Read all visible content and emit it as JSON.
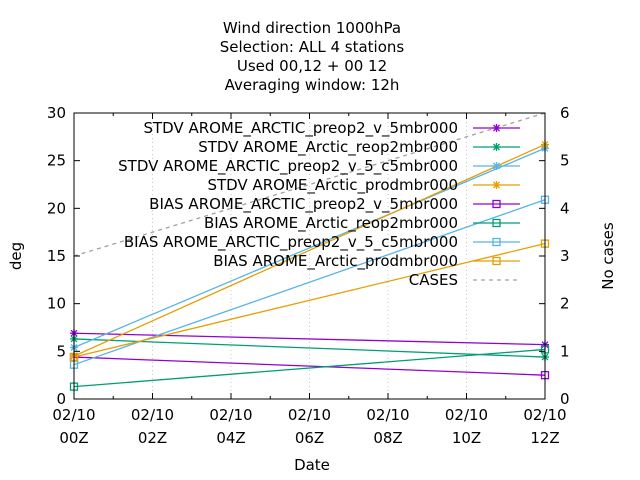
{
  "chart_data": {
    "type": "line",
    "title_lines": [
      "Wind direction 1000hPa",
      "Selection: ALL      4 stations",
      "Used  00,12  + 00  12",
      "Averaging window: 12h"
    ],
    "xlabel": "Date",
    "ylabel": "deg",
    "y2label": "No cases",
    "x": [
      0,
      12
    ],
    "xticks": [
      {
        "v": 0,
        "l1": "02/10",
        "l2": "00Z"
      },
      {
        "v": 2,
        "l1": "02/10",
        "l2": "02Z"
      },
      {
        "v": 4,
        "l1": "02/10",
        "l2": "04Z"
      },
      {
        "v": 6,
        "l1": "02/10",
        "l2": "06Z"
      },
      {
        "v": 8,
        "l1": "02/10",
        "l2": "08Z"
      },
      {
        "v": 10,
        "l1": "02/10",
        "l2": "10Z"
      },
      {
        "v": 12,
        "l1": "02/10",
        "l2": "12Z"
      }
    ],
    "xlim": [
      0,
      12
    ],
    "ylim": [
      0,
      30
    ],
    "y2lim": [
      0,
      6
    ],
    "yticks": [
      "0",
      "5",
      "10",
      "15",
      "20",
      "25",
      "30"
    ],
    "y2ticks": [
      "0",
      "1",
      "2",
      "3",
      "4",
      "5",
      "6"
    ],
    "legend_position": "top-right",
    "series": [
      {
        "name": "STDV AROME_ARCTIC_preop2_v_5mbr000",
        "kind": "stdv",
        "color": "#9400d3",
        "marker": "star",
        "axis": "y",
        "values": [
          6.9,
          5.7
        ]
      },
      {
        "name": "STDV AROME_Arctic_reop2mbr000",
        "kind": "stdv",
        "color": "#009e73",
        "marker": "star",
        "axis": "y",
        "values": [
          6.3,
          4.4
        ]
      },
      {
        "name": "STDV AROME_ARCTIC_preop2_v_5_c5mbr000",
        "kind": "stdv",
        "color": "#56b4e9",
        "marker": "star",
        "axis": "y",
        "values": [
          5.4,
          26.3
        ]
      },
      {
        "name": "STDV AROME_Arctic_prodmbr000",
        "kind": "stdv",
        "color": "#e69f00",
        "marker": "star",
        "axis": "y",
        "values": [
          4.5,
          26.7
        ]
      },
      {
        "name": "BIAS AROME_ARCTIC_preop2_v_5mbr000",
        "kind": "bias",
        "color": "#9400d3",
        "marker": "square",
        "axis": "y",
        "values": [
          4.4,
          2.5
        ]
      },
      {
        "name": "BIAS AROME_Arctic_reop2mbr000",
        "kind": "bias",
        "color": "#009e73",
        "marker": "square",
        "axis": "y",
        "values": [
          1.3,
          5.2
        ]
      },
      {
        "name": "BIAS AROME_ARCTIC_preop2_v_5_c5mbr000",
        "kind": "bias",
        "color": "#56b4e9",
        "marker": "square",
        "axis": "y",
        "values": [
          3.6,
          20.9
        ]
      },
      {
        "name": "BIAS AROME_Arctic_prodmbr000",
        "kind": "bias",
        "color": "#e69f00",
        "marker": "square",
        "axis": "y",
        "values": [
          4.4,
          16.3
        ]
      },
      {
        "name": "CASES",
        "kind": "cases",
        "color": "#a0a0a0",
        "marker": "none",
        "dashed": true,
        "axis": "y2",
        "values": [
          3,
          6
        ]
      }
    ]
  }
}
